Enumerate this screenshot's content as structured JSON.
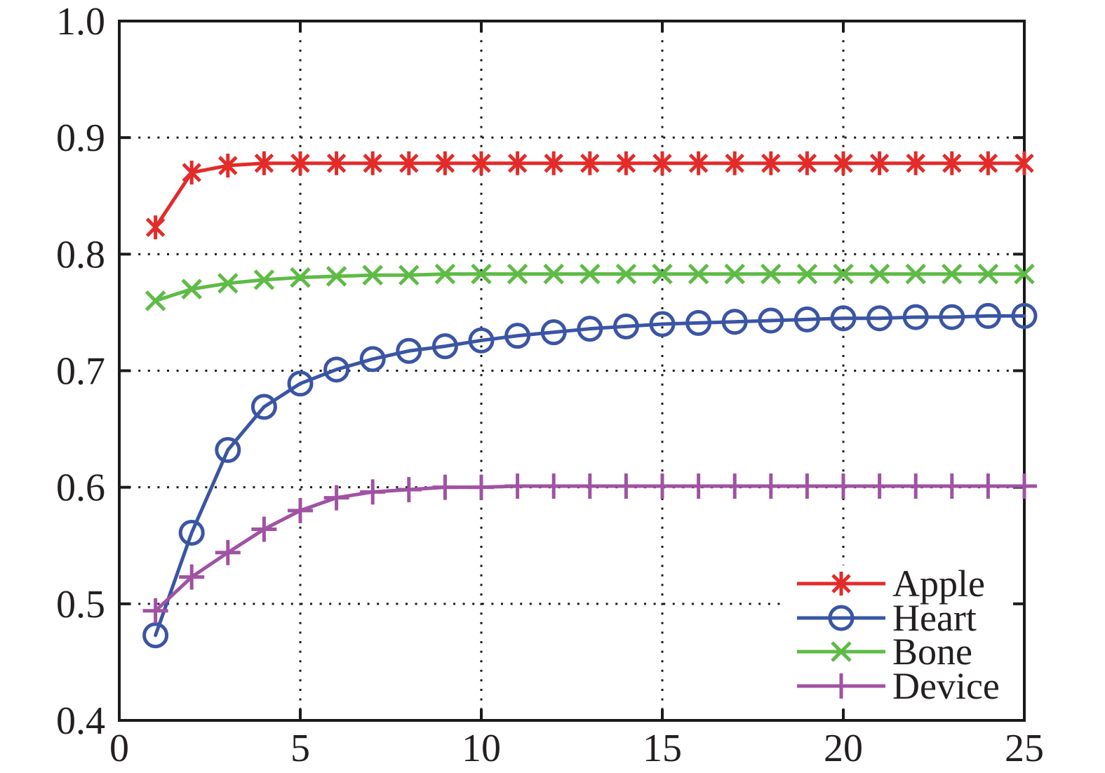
{
  "figure": {
    "background": "#ffffff",
    "text_color": "#231f20",
    "axis_color": "#1a1a1a"
  },
  "chart_data": {
    "type": "line",
    "title": "",
    "xlabel": "",
    "ylabel": "",
    "x": [
      1,
      2,
      3,
      4,
      5,
      6,
      7,
      8,
      9,
      10,
      11,
      12,
      13,
      14,
      15,
      16,
      17,
      18,
      19,
      20,
      21,
      22,
      23,
      24,
      25
    ],
    "series": [
      {
        "name": "Apple",
        "color": "#e32b2a",
        "marker": "asterisk",
        "values": [
          0.823,
          0.87,
          0.876,
          0.878,
          0.878,
          0.878,
          0.878,
          0.878,
          0.878,
          0.878,
          0.878,
          0.878,
          0.878,
          0.878,
          0.878,
          0.878,
          0.878,
          0.878,
          0.878,
          0.878,
          0.878,
          0.878,
          0.878,
          0.878,
          0.878
        ]
      },
      {
        "name": "Heart",
        "color": "#3a55a4",
        "marker": "circle",
        "values": [
          0.473,
          0.561,
          0.632,
          0.669,
          0.689,
          0.701,
          0.71,
          0.717,
          0.721,
          0.726,
          0.73,
          0.733,
          0.736,
          0.738,
          0.74,
          0.741,
          0.742,
          0.743,
          0.744,
          0.745,
          0.745,
          0.746,
          0.746,
          0.747,
          0.747
        ]
      },
      {
        "name": "Bone",
        "color": "#5ebb46",
        "marker": "x",
        "values": [
          0.76,
          0.77,
          0.775,
          0.778,
          0.78,
          0.781,
          0.782,
          0.782,
          0.783,
          0.783,
          0.783,
          0.783,
          0.783,
          0.783,
          0.783,
          0.783,
          0.783,
          0.783,
          0.783,
          0.783,
          0.783,
          0.783,
          0.783,
          0.783,
          0.783
        ]
      },
      {
        "name": "Device",
        "color": "#a052a3",
        "marker": "plus",
        "values": [
          0.494,
          0.523,
          0.544,
          0.564,
          0.58,
          0.591,
          0.596,
          0.598,
          0.6,
          0.6,
          0.601,
          0.601,
          0.601,
          0.601,
          0.601,
          0.601,
          0.601,
          0.601,
          0.601,
          0.601,
          0.601,
          0.601,
          0.601,
          0.601,
          0.601
        ]
      }
    ],
    "xlim": [
      0,
      25
    ],
    "ylim": [
      0.4,
      1.0
    ],
    "xticks": [
      0,
      5,
      10,
      15,
      20,
      25
    ],
    "xtick_labels": [
      "0",
      "5",
      "10",
      "15",
      "20",
      "25"
    ],
    "yticks": [
      0.4,
      0.5,
      0.6,
      0.7,
      0.8,
      0.9,
      1.0
    ],
    "ytick_labels": [
      "0.4",
      "0.5",
      "0.6",
      "0.7",
      "0.8",
      "0.9",
      "1.0"
    ],
    "grid": {
      "style": "dotted",
      "color": "#1a1a1a",
      "on": true
    },
    "legend": {
      "position": "lower-right",
      "border": "none",
      "entries": [
        "Apple",
        "Heart",
        "Bone",
        "Device"
      ]
    }
  }
}
